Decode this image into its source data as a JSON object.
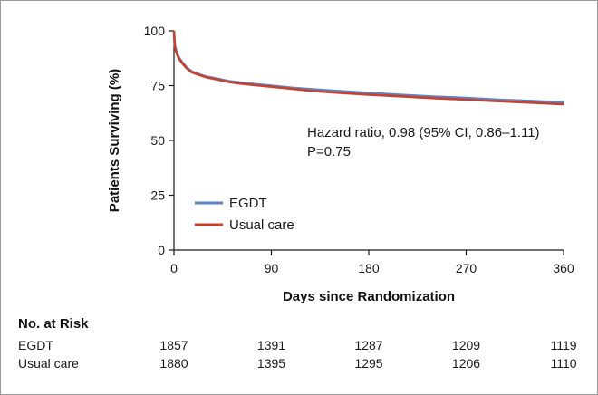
{
  "chart_data": {
    "type": "line",
    "title": "",
    "xlabel": "Days since Randomization",
    "ylabel": "Patients Surviving (%)",
    "xlim": [
      0,
      360
    ],
    "ylim": [
      0,
      100
    ],
    "x_ticks": [
      "0",
      "90",
      "180",
      "270",
      "360"
    ],
    "y_ticks": [
      "0",
      "25",
      "50",
      "75",
      "100"
    ],
    "series": [
      {
        "name": "EGDT",
        "color": "#5b86c5",
        "x": [
          0,
          0.5,
          1,
          2,
          3,
          5,
          8,
          12,
          16,
          20,
          25,
          30,
          40,
          50,
          60,
          75,
          90,
          110,
          130,
          150,
          180,
          210,
          240,
          270,
          300,
          330,
          360
        ],
        "y": [
          100,
          95.5,
          93,
          91,
          89.5,
          87.5,
          85.5,
          83.2,
          81.6,
          80.8,
          79.9,
          79.1,
          78.2,
          77.1,
          76.5,
          75.7,
          75.0,
          74.0,
          73.3,
          72.6,
          71.7,
          70.8,
          70.0,
          69.4,
          68.6,
          68.0,
          67.4
        ]
      },
      {
        "name": "Usual care",
        "color": "#c8412f",
        "x": [
          0,
          0.5,
          1,
          2,
          3,
          5,
          8,
          12,
          16,
          20,
          25,
          30,
          40,
          50,
          60,
          75,
          90,
          110,
          130,
          150,
          180,
          210,
          240,
          270,
          300,
          330,
          360
        ],
        "y": [
          100,
          95.0,
          92.5,
          90.5,
          89.0,
          87.0,
          85.0,
          82.8,
          81.2,
          80.4,
          79.6,
          78.8,
          77.8,
          76.7,
          76.0,
          75.2,
          74.5,
          73.5,
          72.5,
          71.8,
          70.9,
          70.1,
          69.3,
          68.6,
          67.9,
          67.2,
          66.5
        ]
      }
    ],
    "legend": {
      "position": "bottom-left",
      "entries": [
        "EGDT",
        "Usual care"
      ]
    },
    "annotation": {
      "line1": "Hazard ratio, 0.98 (95% CI, 0.86–1.11)",
      "line2": "P=0.75"
    },
    "grid": false
  },
  "risk_table": {
    "title": "No. at Risk",
    "rows": [
      {
        "label": "EGDT",
        "values": [
          "1857",
          "1391",
          "1287",
          "1209",
          "1119"
        ]
      },
      {
        "label": "Usual care",
        "values": [
          "1880",
          "1395",
          "1295",
          "1206",
          "1110"
        ]
      }
    ]
  }
}
